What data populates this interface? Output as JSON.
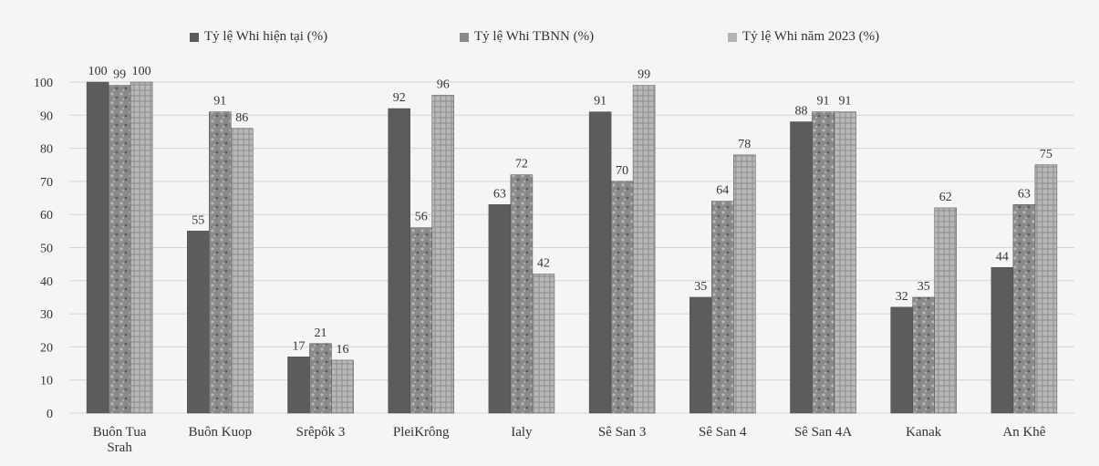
{
  "chart_data": {
    "type": "bar",
    "categories": [
      "Buôn Tua Srah",
      "Buôn Kuop",
      "Srêpôk 3",
      "PleiKrông",
      "Ialy",
      "Sê San 3",
      "Sê San 4",
      "Sê San 4A",
      "Kanak",
      "An Khê"
    ],
    "category_lines": [
      [
        "Buôn Tua",
        "Srah"
      ],
      [
        "Buôn Kuop"
      ],
      [
        "Srêpôk 3"
      ],
      [
        "PleiKrông"
      ],
      [
        "Ialy"
      ],
      [
        "Sê San 3"
      ],
      [
        "Sê San 4"
      ],
      [
        "Sê San 4A"
      ],
      [
        "Kanak"
      ],
      [
        "An Khê"
      ]
    ],
    "series": [
      {
        "name": "Tỷ lệ Whi hiện tại (%)",
        "values": [
          100,
          55,
          17,
          92,
          63,
          91,
          35,
          88,
          32,
          44
        ]
      },
      {
        "name": "Tỷ lệ Whi TBNN (%)",
        "values": [
          99,
          91,
          21,
          56,
          72,
          70,
          64,
          91,
          35,
          63
        ]
      },
      {
        "name": "Tỷ lệ Whi năm 2023 (%)",
        "values": [
          100,
          86,
          16,
          96,
          42,
          99,
          78,
          91,
          62,
          75
        ]
      }
    ],
    "ylim": [
      0,
      100
    ],
    "yticks": [
      0,
      10,
      20,
      30,
      40,
      50,
      60,
      70,
      80,
      90,
      100
    ],
    "title": "",
    "xlabel": "",
    "ylabel": "",
    "grid": true,
    "legend_position": "top",
    "colors": [
      "#5c5c5c",
      "#8a8a8a",
      "#b4b4b4"
    ]
  }
}
